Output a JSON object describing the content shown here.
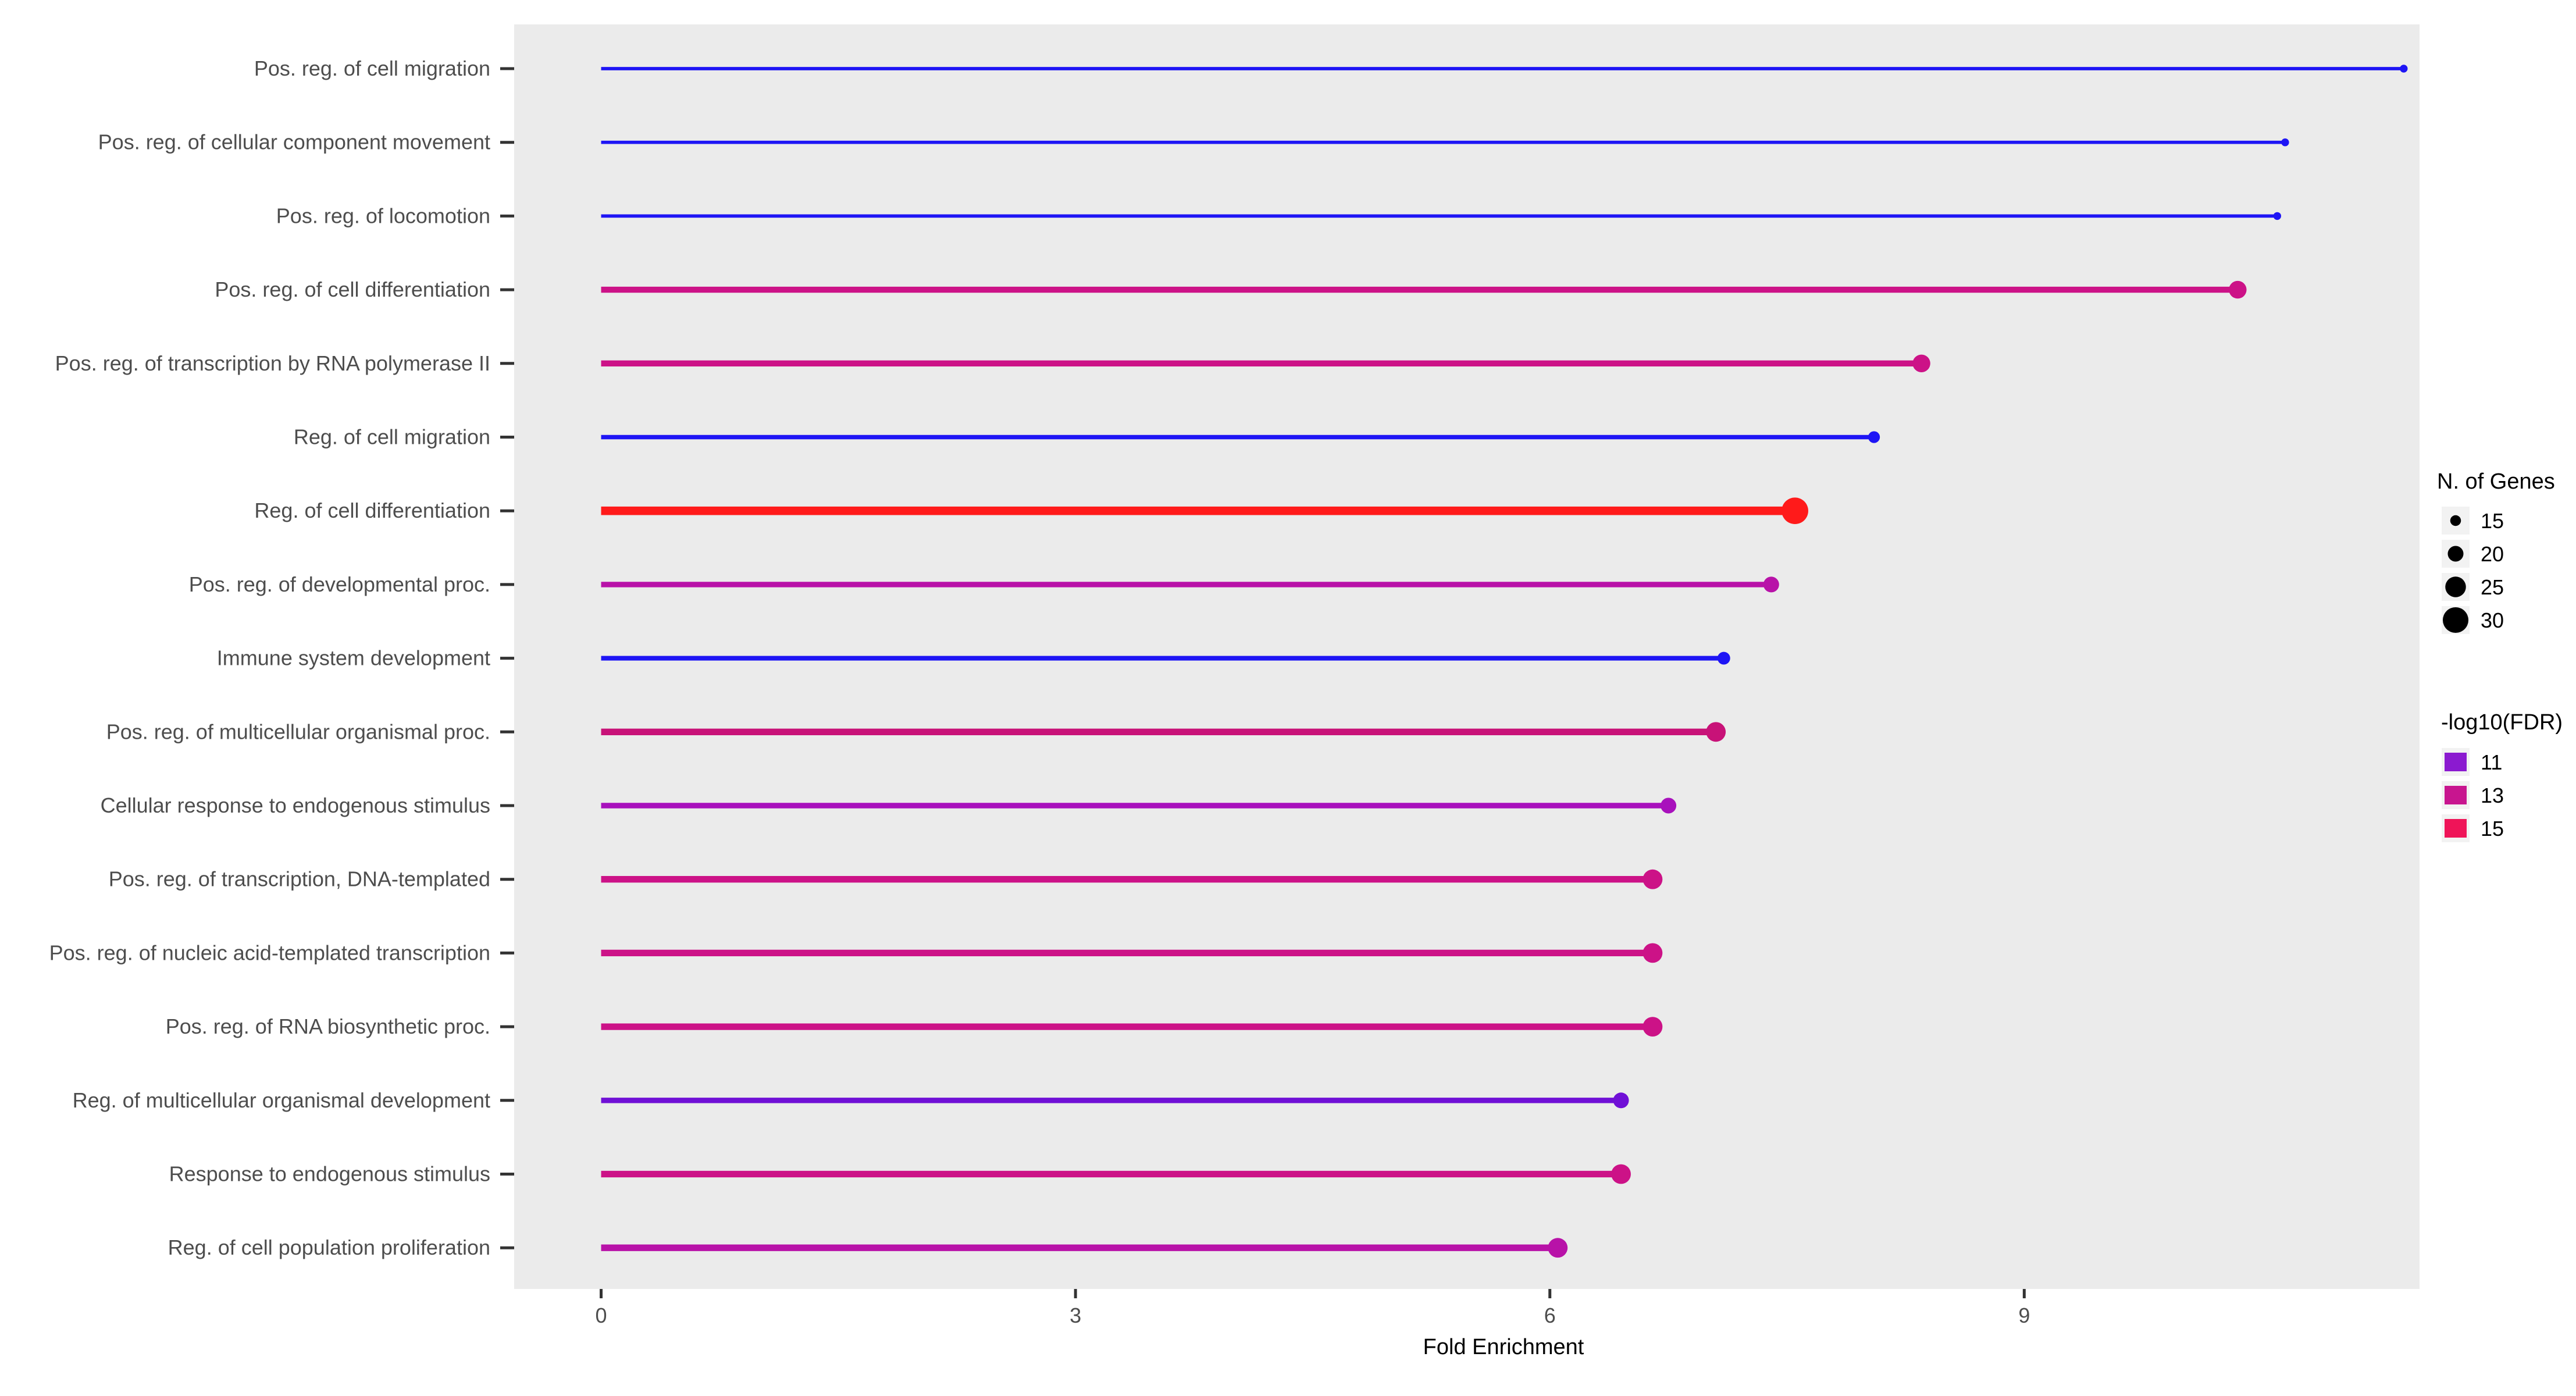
{
  "chart_data": {
    "type": "lollipop",
    "xlabel": "Fold Enrichment",
    "ylabel": "",
    "xlim": [
      -0.55,
      11.5
    ],
    "xticks": [
      0,
      3,
      6,
      9
    ],
    "grid": false,
    "panel_background": "#ebebeb",
    "categories": [
      "Pos. reg. of cell migration",
      "Pos. reg. of cellular component movement",
      "Pos. reg. of locomotion",
      "Pos. reg. of cell differentiation",
      "Pos. reg. of transcription by RNA polymerase II",
      "Reg. of cell migration",
      "Reg. of cell differentiation",
      "Pos. reg. of developmental proc.",
      "Immune system development",
      "Pos. reg. of multicellular organismal proc.",
      "Cellular response to endogenous stimulus",
      "Pos. reg. of transcription, DNA-templated",
      "Pos. reg. of nucleic acid-templated transcription",
      "Pos. reg. of RNA biosynthetic proc.",
      "Reg. of multicellular organismal development",
      "Response to endogenous stimulus",
      "Reg. of cell population proliferation"
    ],
    "fold_enrichment": [
      11.4,
      10.65,
      10.6,
      10.35,
      8.35,
      8.05,
      7.55,
      7.4,
      7.1,
      7.05,
      6.75,
      6.65,
      6.65,
      6.65,
      6.45,
      6.45,
      6.05
    ],
    "n_genes": [
      12,
      12,
      12,
      22,
      22,
      16,
      31,
      20,
      17,
      24,
      20,
      24,
      24,
      24,
      20,
      24,
      24
    ],
    "neg_log10_fdr": [
      9,
      9,
      9,
      13.5,
      13.5,
      9,
      16.5,
      12,
      9,
      14,
      11.5,
      14,
      14,
      14,
      10,
      13.5,
      12
    ],
    "colors": [
      "#1e15f5",
      "#1e15f5",
      "#1e15f5",
      "#cc1287",
      "#cc1287",
      "#1e15f5",
      "#ff1a1a",
      "#b812a8",
      "#1e15f5",
      "#c81278",
      "#a811bc",
      "#cc1287",
      "#cc1287",
      "#cc1287",
      "#7010d6",
      "#cc1287",
      "#b812a8"
    ],
    "legend_size": {
      "title": "N. of Genes",
      "values": [
        "15",
        "20",
        "25",
        "30"
      ]
    },
    "legend_color": {
      "title": "-log10(FDR)",
      "values": [
        "11",
        "13",
        "15"
      ],
      "colors": [
        "#8b1ad0",
        "#c8158f",
        "#ef1458"
      ]
    }
  }
}
